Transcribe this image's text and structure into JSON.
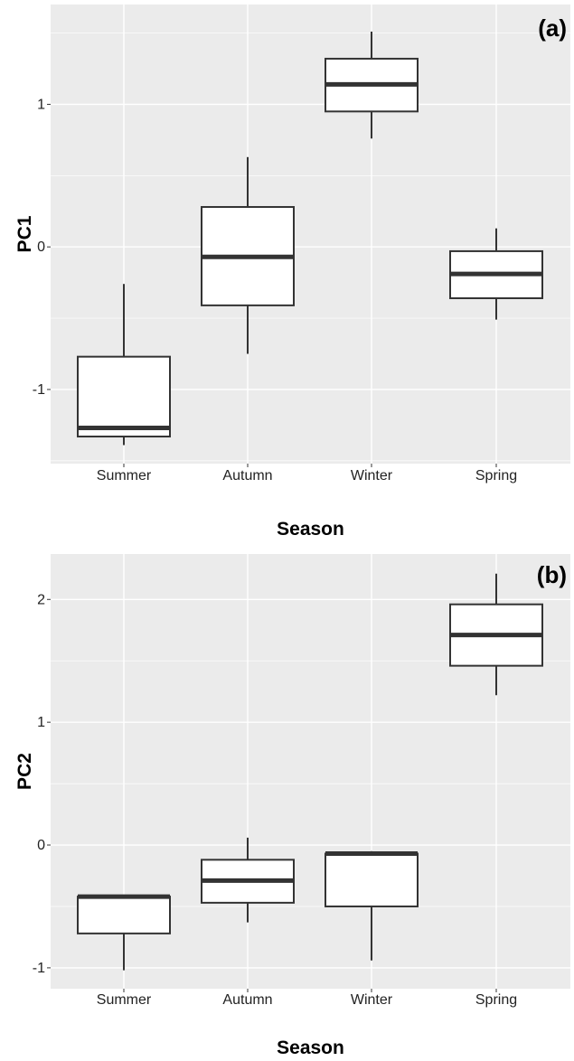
{
  "colors": {
    "panel_background": "#ebebeb",
    "grid": "#ffffff",
    "box_fill": "#ffffff",
    "box_stroke": "#333333"
  },
  "chart_data": [
    {
      "type": "box",
      "panel_label": "(a)",
      "xlabel": "Season",
      "ylabel": "PC1",
      "categories": [
        "Summer",
        "Autumn",
        "Winter",
        "Spring"
      ],
      "y_ticks": [
        -1,
        0,
        1
      ],
      "y_tick_labels": [
        "-1",
        "0",
        "1"
      ],
      "ylim": [
        -1.52,
        1.7
      ],
      "grid": true,
      "boxes": [
        {
          "whisker_low": -1.39,
          "q1": -1.33,
          "median": -1.27,
          "q3": -0.77,
          "whisker_high": -0.26
        },
        {
          "whisker_low": -0.75,
          "q1": -0.41,
          "median": -0.07,
          "q3": 0.28,
          "whisker_high": 0.63
        },
        {
          "whisker_low": 0.76,
          "q1": 0.95,
          "median": 1.14,
          "q3": 1.32,
          "whisker_high": 1.51
        },
        {
          "whisker_low": -0.51,
          "q1": -0.36,
          "median": -0.19,
          "q3": -0.03,
          "whisker_high": 0.13
        }
      ]
    },
    {
      "type": "box",
      "panel_label": "(b)",
      "xlabel": "Season",
      "ylabel": "PC2",
      "categories": [
        "Summer",
        "Autumn",
        "Winter",
        "Spring"
      ],
      "y_ticks": [
        -1,
        0,
        1,
        2
      ],
      "y_tick_labels": [
        "-1",
        "0",
        "1",
        "2"
      ],
      "ylim": [
        -1.17,
        2.37
      ],
      "grid": true,
      "boxes": [
        {
          "whisker_low": -1.02,
          "q1": -0.72,
          "median": -0.42,
          "q3": -0.42,
          "whisker_high": -0.42
        },
        {
          "whisker_low": -0.63,
          "q1": -0.47,
          "median": -0.29,
          "q3": -0.12,
          "whisker_high": 0.06
        },
        {
          "whisker_low": -0.94,
          "q1": -0.5,
          "median": -0.07,
          "q3": -0.07,
          "whisker_high": -0.05
        },
        {
          "whisker_low": 1.22,
          "q1": 1.46,
          "median": 1.71,
          "q3": 1.96,
          "whisker_high": 2.21
        }
      ]
    }
  ]
}
